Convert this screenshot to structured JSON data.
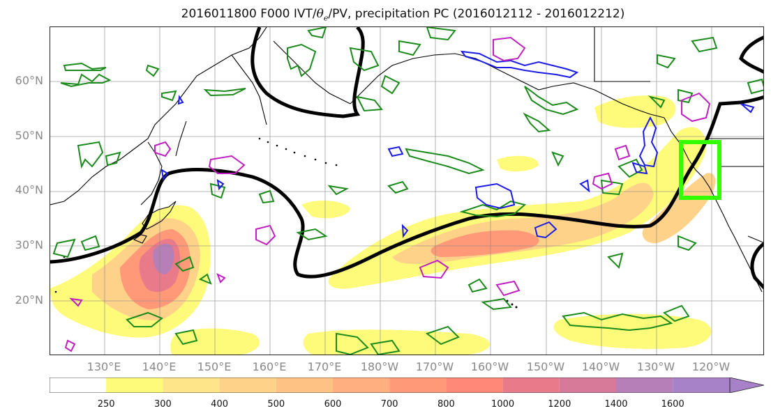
{
  "title": {
    "prefix": "2016011800 F000 IVT/",
    "theta": "θ",
    "sub": "e",
    "suffix": "/PV, precipitation PC (2016012112 - 2016012212)"
  },
  "axes": {
    "lat_labels": [
      "60°N",
      "50°N",
      "40°N",
      "30°N",
      "20°N"
    ],
    "lon_labels": [
      "130°E",
      "140°E",
      "150°E",
      "160°E",
      "170°E",
      "180°W",
      "170°W",
      "160°W",
      "150°W",
      "140°W",
      "130°W",
      "120°W"
    ]
  },
  "colorbar": {
    "labels": [
      "250",
      "300",
      "400",
      "500",
      "600",
      "700",
      "800",
      "1000",
      "1200",
      "1400",
      "1600"
    ],
    "colors": [
      "#ffffff",
      "#fffb7a",
      "#ffe58a",
      "#ffd28a",
      "#ffc285",
      "#ffaf80",
      "#ff9977",
      "#ff8878",
      "#e97a8a",
      "#d77a99",
      "#b67fb8",
      "#a782c8"
    ]
  },
  "colors": {
    "ivt_contour": "#000000",
    "pv_contour_green": "#1a8a1a",
    "pv_contour_blue": "#1a1ae6",
    "pv_contour_magenta": "#c01ec0",
    "box": "#33ff00",
    "grid": "#888888"
  }
}
